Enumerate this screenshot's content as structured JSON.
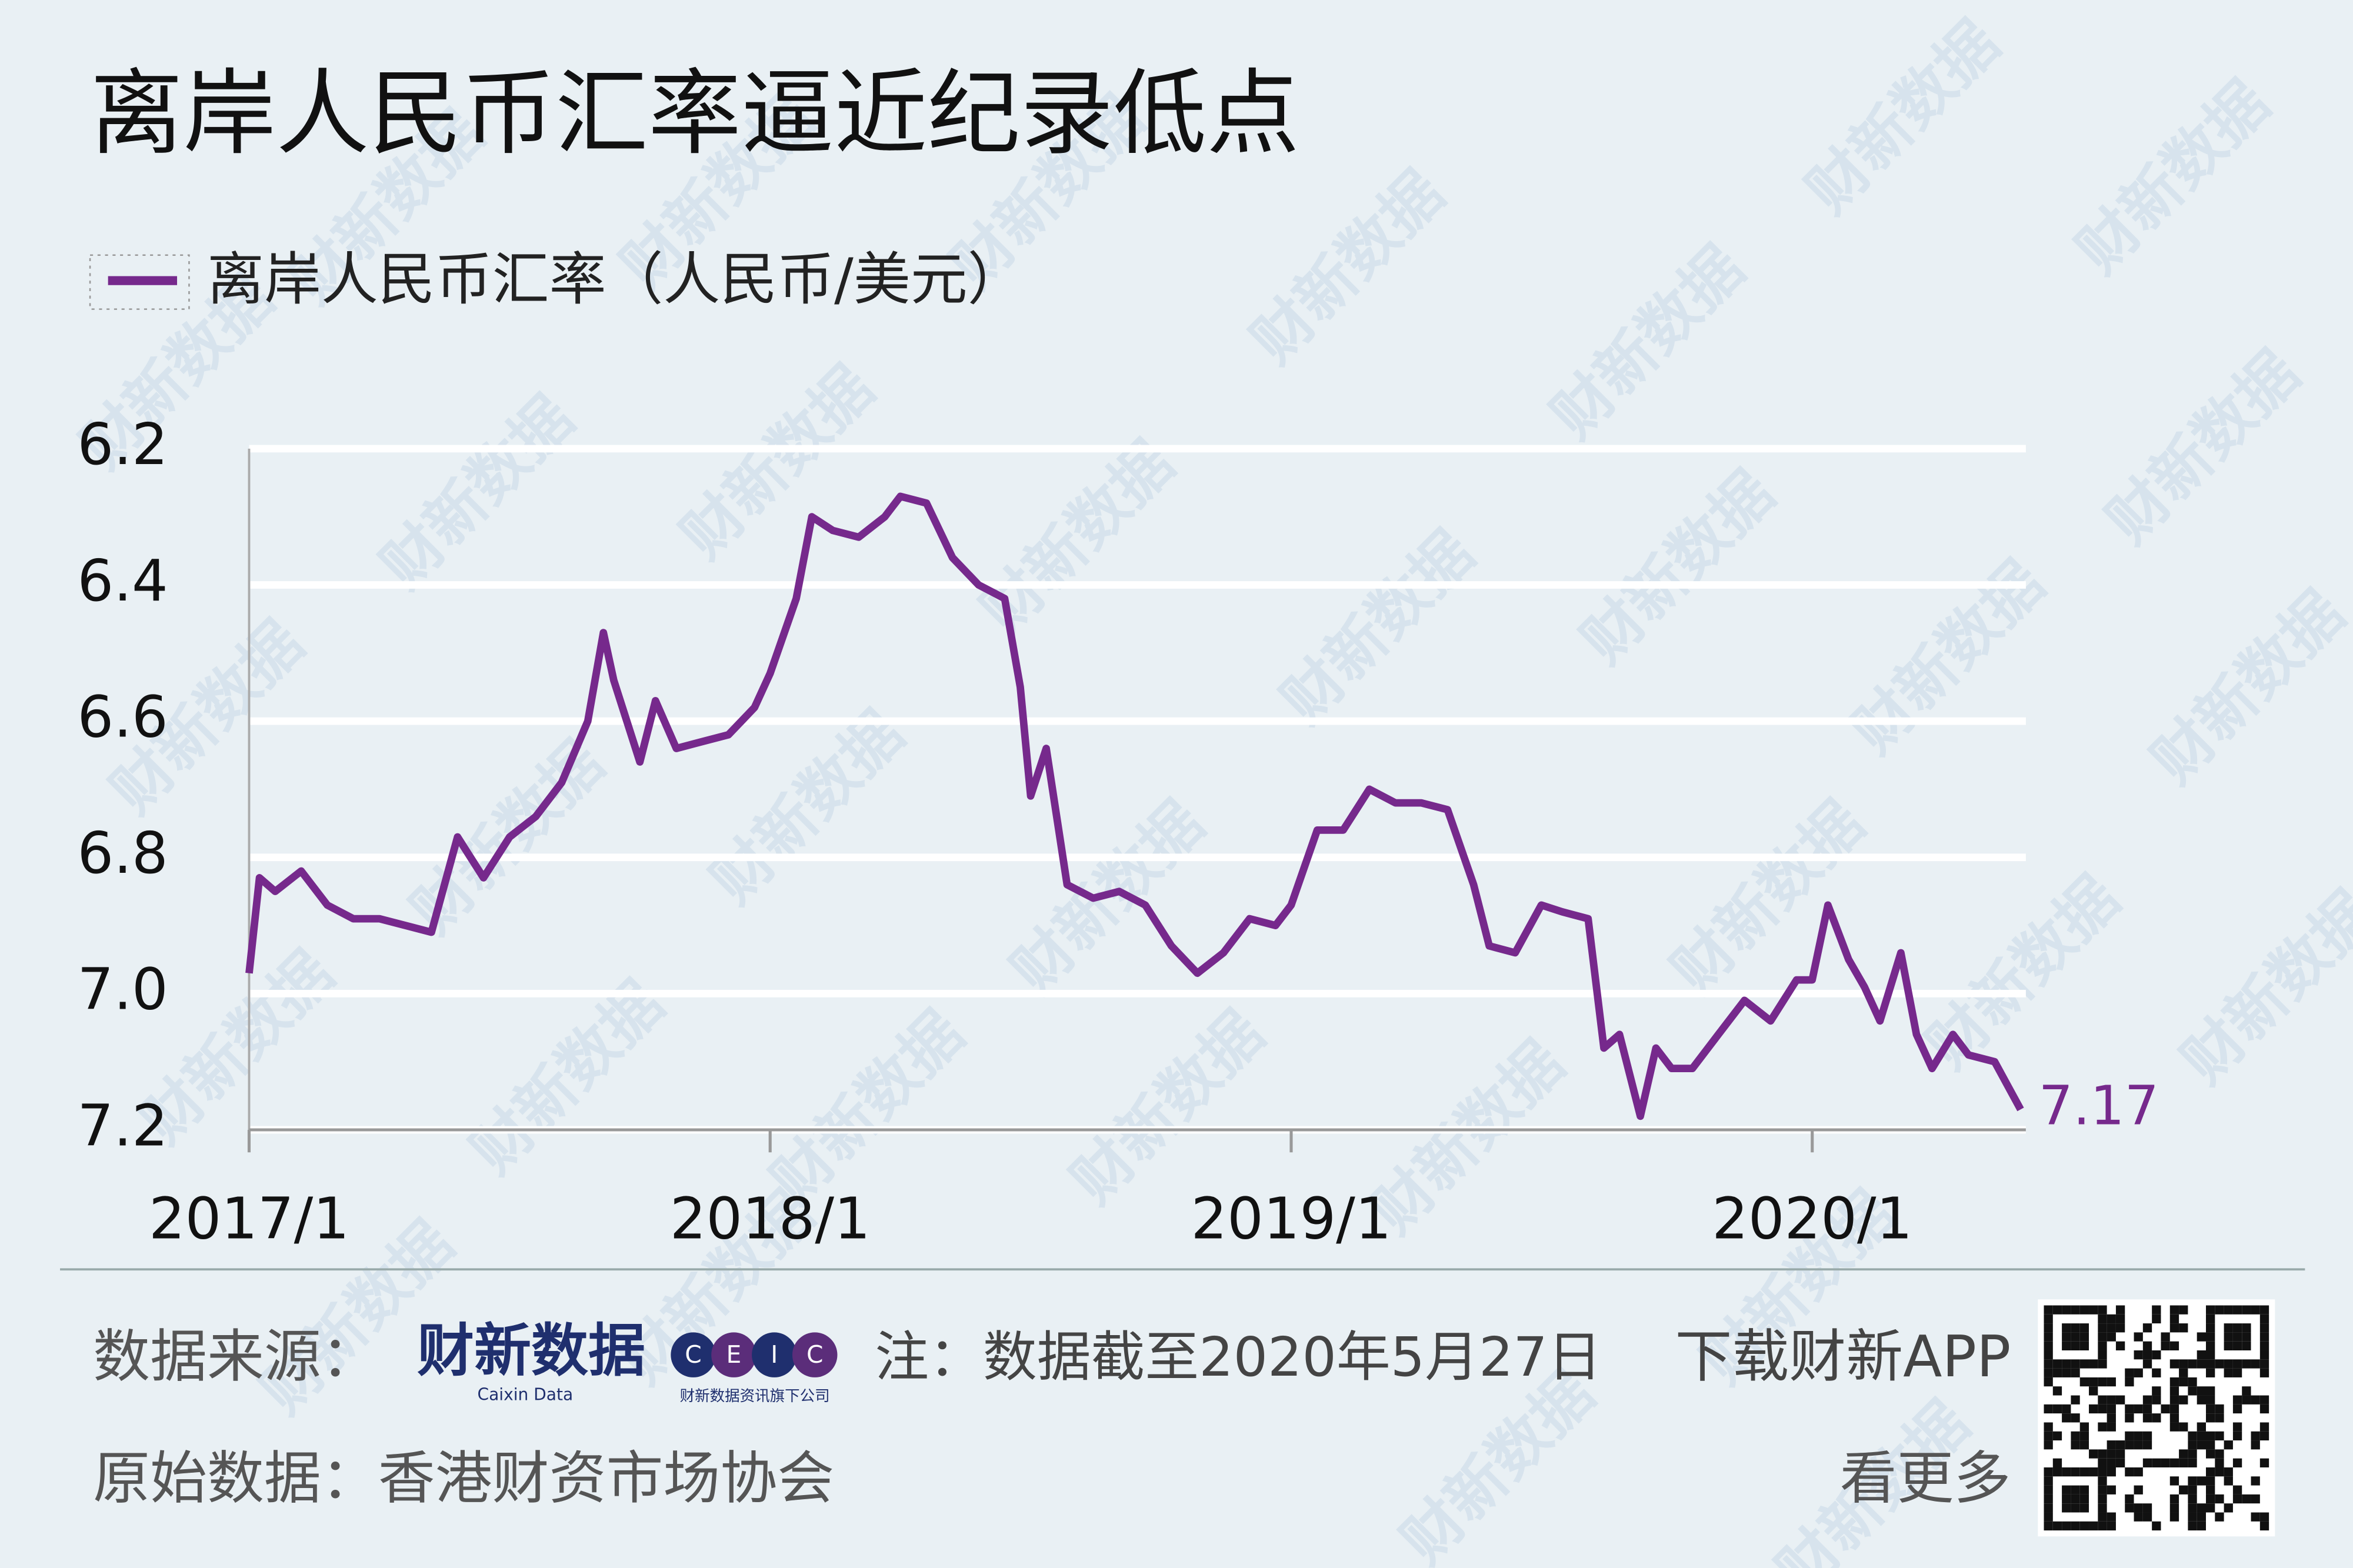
{
  "chart_data": {
    "type": "line",
    "title": "离岸人民币汇率逼近纪录低点",
    "x": [
      2017.0,
      2017.02,
      2017.05,
      2017.1,
      2017.15,
      2017.2,
      2017.25,
      2017.3,
      2017.35,
      2017.4,
      2017.45,
      2017.5,
      2017.55,
      2017.6,
      2017.65,
      2017.68,
      2017.7,
      2017.75,
      2017.78,
      2017.82,
      2017.87,
      2017.92,
      2017.97,
      2018.0,
      2018.05,
      2018.08,
      2018.12,
      2018.17,
      2018.22,
      2018.25,
      2018.3,
      2018.35,
      2018.4,
      2018.45,
      2018.48,
      2018.5,
      2018.53,
      2018.57,
      2018.62,
      2018.67,
      2018.72,
      2018.77,
      2018.82,
      2018.87,
      2018.92,
      2018.97,
      2019.0,
      2019.05,
      2019.1,
      2019.15,
      2019.2,
      2019.25,
      2019.3,
      2019.35,
      2019.38,
      2019.43,
      2019.48,
      2019.52,
      2019.57,
      2019.6,
      2019.63,
      2019.67,
      2019.7,
      2019.73,
      2019.77,
      2019.82,
      2019.87,
      2019.92,
      2019.97,
      2020.0,
      2020.03,
      2020.07,
      2020.1,
      2020.13,
      2020.17,
      2020.2,
      2020.23,
      2020.27,
      2020.3,
      2020.35,
      2020.4
    ],
    "series": [
      {
        "name": "离岸人民币汇率（人民币/美元）",
        "color": "#76298c",
        "values": [
          6.97,
          6.83,
          6.85,
          6.82,
          6.87,
          6.89,
          6.89,
          6.9,
          6.91,
          6.77,
          6.83,
          6.77,
          6.74,
          6.69,
          6.6,
          6.47,
          6.54,
          6.66,
          6.57,
          6.64,
          6.63,
          6.62,
          6.58,
          6.53,
          6.42,
          6.3,
          6.32,
          6.33,
          6.3,
          6.27,
          6.28,
          6.36,
          6.4,
          6.42,
          6.55,
          6.71,
          6.64,
          6.84,
          6.86,
          6.85,
          6.87,
          6.93,
          6.97,
          6.94,
          6.89,
          6.9,
          6.87,
          6.76,
          6.76,
          6.7,
          6.72,
          6.72,
          6.73,
          6.84,
          6.93,
          6.94,
          6.87,
          6.88,
          6.89,
          7.08,
          7.06,
          7.18,
          7.08,
          7.11,
          7.11,
          7.06,
          7.01,
          7.04,
          6.98,
          6.98,
          6.87,
          6.95,
          6.99,
          7.04,
          6.94,
          7.06,
          7.11,
          7.06,
          7.09,
          7.1,
          7.17
        ]
      }
    ],
    "xlim": [
      2017,
      2020.41
    ],
    "xticks": [
      {
        "value": 2017,
        "label": "2017/1"
      },
      {
        "value": 2018,
        "label": "2018/1"
      },
      {
        "value": 2019,
        "label": "2019/1"
      },
      {
        "value": 2020,
        "label": "2020/1"
      }
    ],
    "ylim": [
      6.2,
      7.2
    ],
    "y_inverted": true,
    "yticks": [
      6.2,
      6.4,
      6.6,
      6.8,
      {
        "value": 7,
        "label": "7.0"
      },
      7.2
    ],
    "grid": true
  },
  "footer": {
    "source_label": "数据来源：",
    "logo_name": "财新数据",
    "logo_sub": "Caixin Data",
    "ceic": [
      "C",
      "E",
      "I",
      "C"
    ],
    "ceic_sub": "财新数据资讯旗下公司",
    "note": "注：数据截至2020年5月27日",
    "app": "下载财新APP",
    "raw_source": "原始数据：香港财资市场协会",
    "more": "看更多"
  },
  "watermark": "财新数据"
}
